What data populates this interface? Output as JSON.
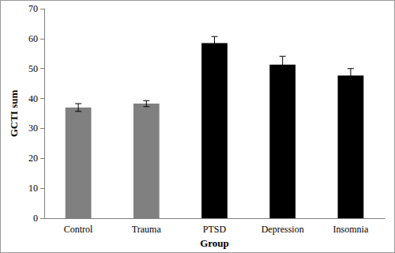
{
  "chart_data": {
    "type": "bar",
    "x_label": "Group",
    "y_label": "GCTI sum",
    "categories": [
      "Control",
      "Trauma",
      "PTSD",
      "Depression",
      "Insomnia"
    ],
    "values": [
      37.0,
      38.3,
      58.5,
      51.3,
      47.7
    ],
    "errors": [
      1.3,
      1.0,
      2.2,
      2.8,
      2.3
    ],
    "colors": [
      "#808080",
      "#808080",
      "#000000",
      "#000000",
      "#000000"
    ],
    "ylim": [
      0,
      70
    ],
    "yticks": [
      0,
      10,
      20,
      30,
      40,
      50,
      60,
      70
    ],
    "grid": false
  }
}
